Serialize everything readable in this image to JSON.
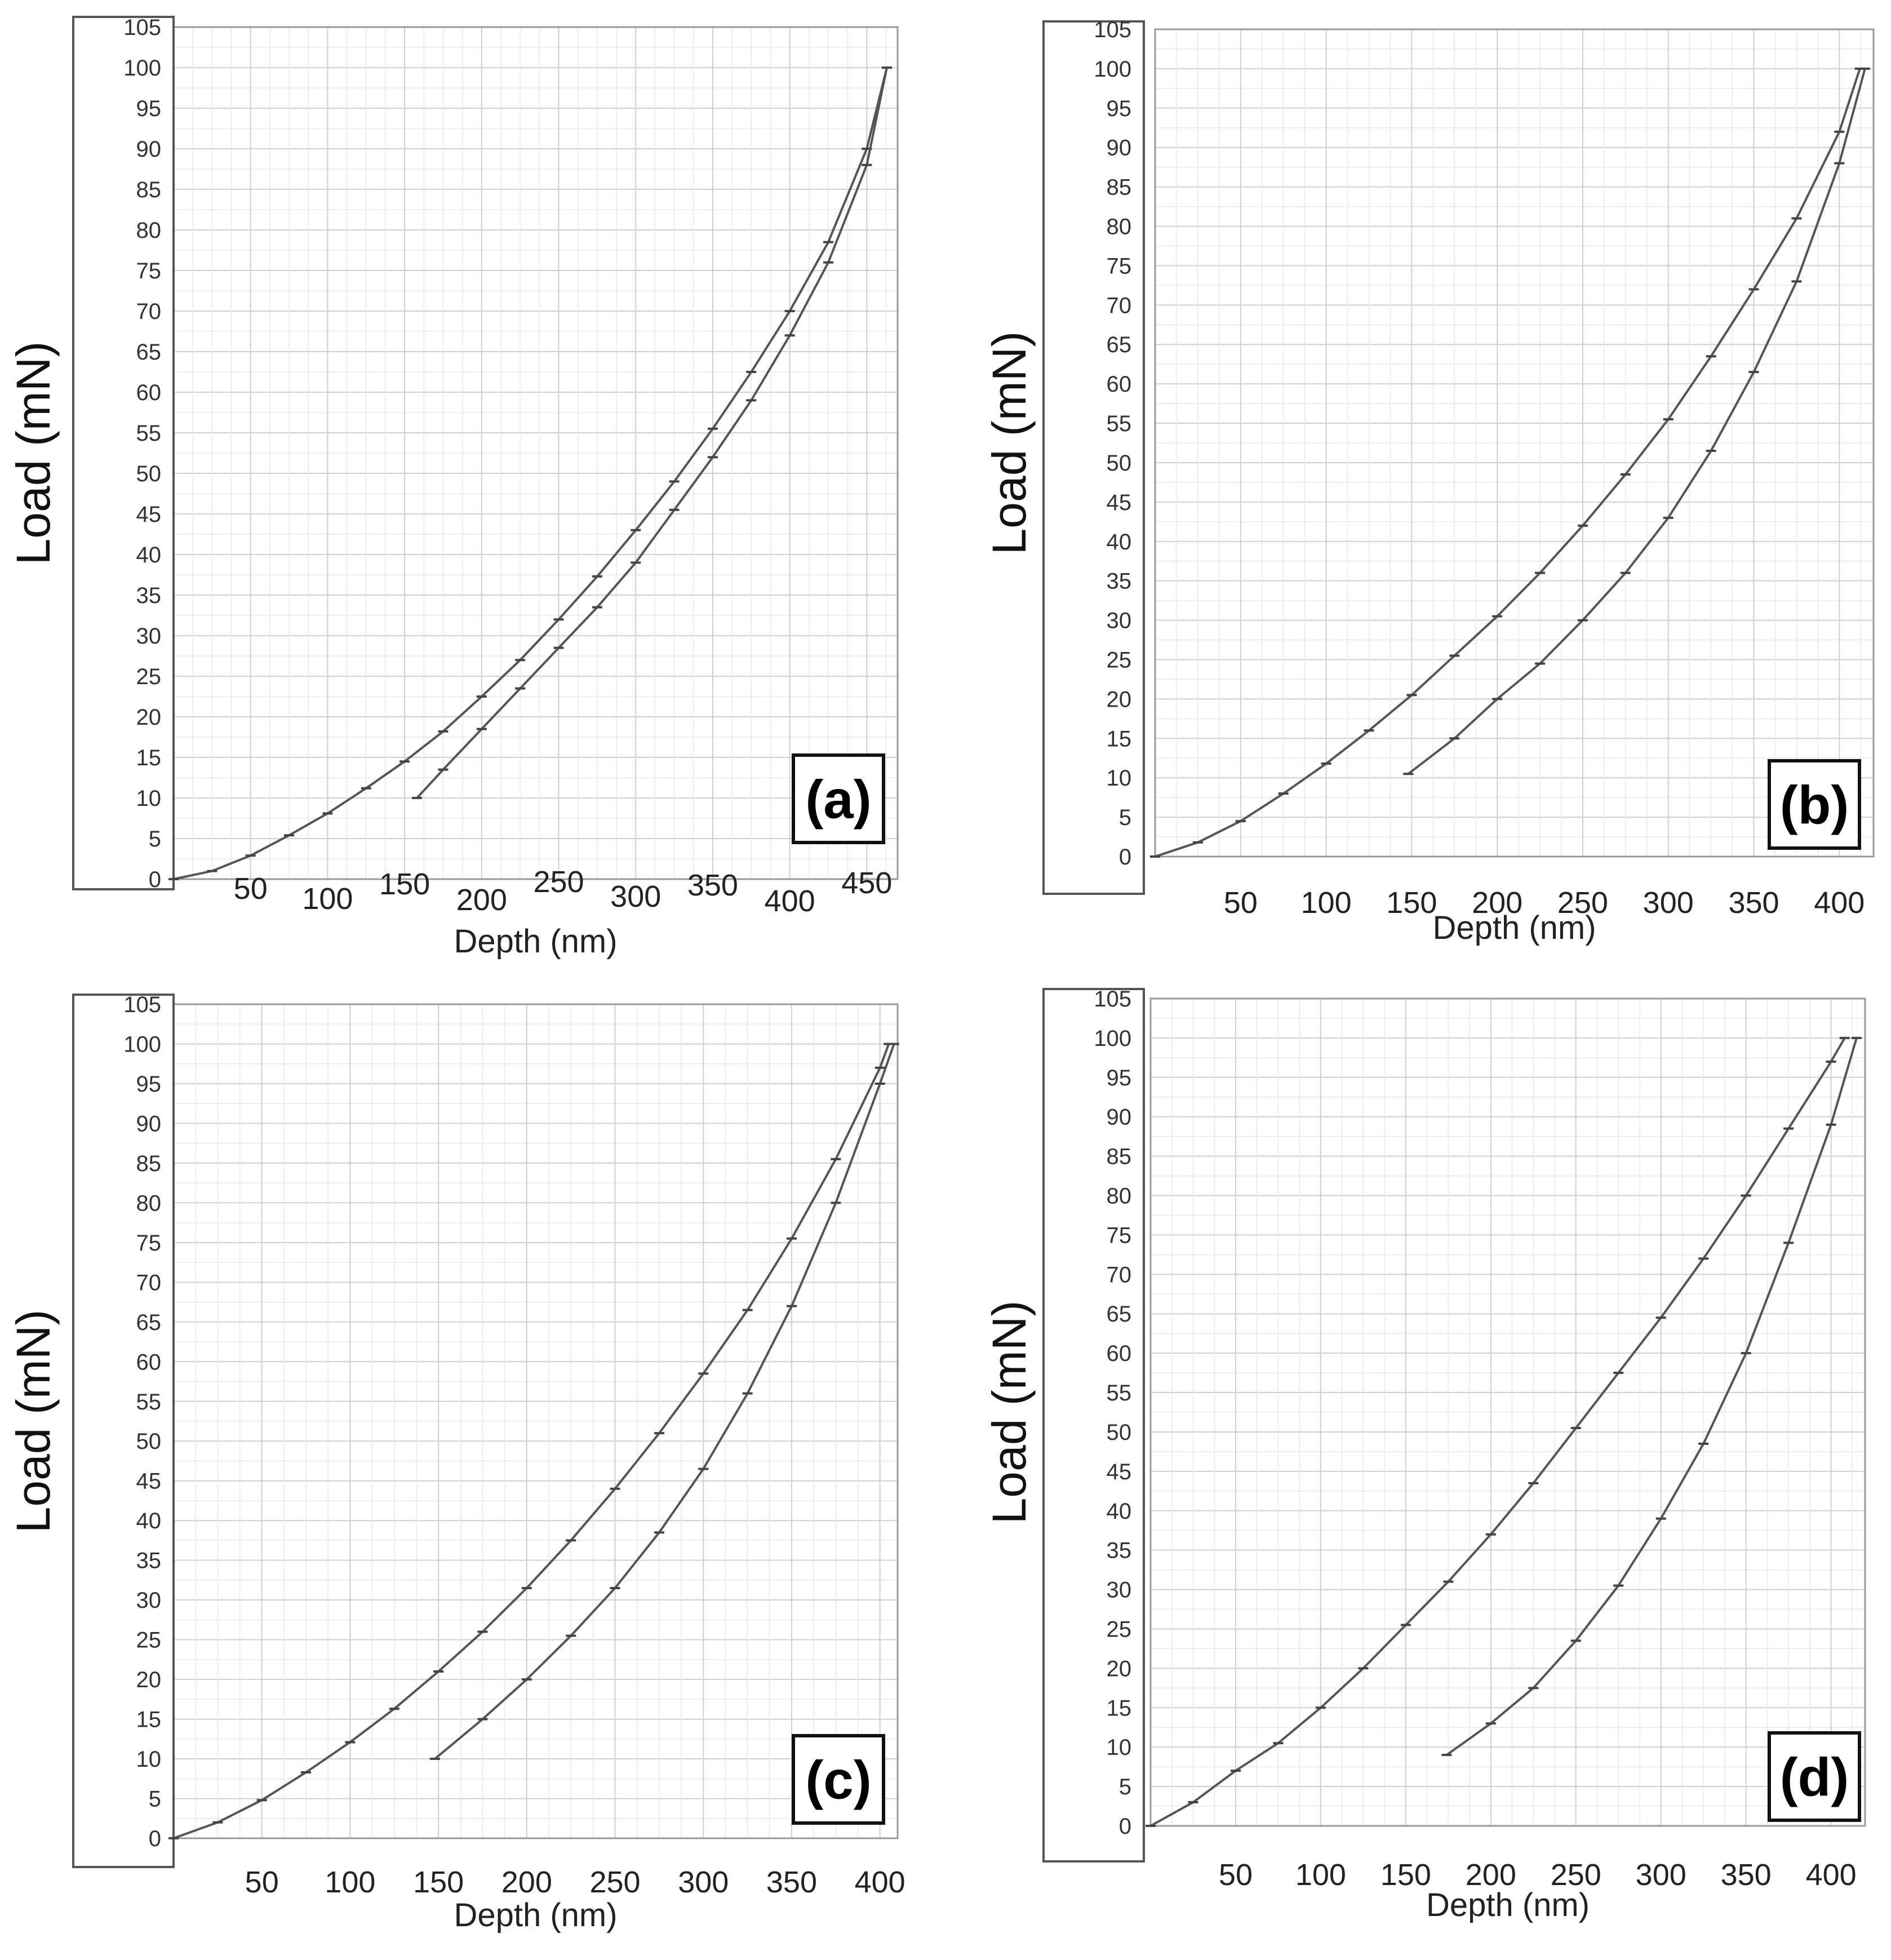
{
  "chart_data": [
    {
      "type": "line",
      "panel_label": "(a)",
      "ylabel": "Load (mN)",
      "xlabel": "Depth (nm)",
      "ylim": [
        0,
        105
      ],
      "yticks": [
        "0",
        "5",
        "10",
        "15",
        "20",
        "25",
        "30",
        "35",
        "40",
        "45",
        "50",
        "55",
        "60",
        "65",
        "70",
        "75",
        "80",
        "85",
        "90",
        "95",
        "100",
        "105"
      ],
      "xlim": [
        0,
        470
      ],
      "xticks": [
        "50",
        "100",
        "150",
        "200",
        "250",
        "300",
        "350",
        "400",
        "450"
      ],
      "grid": true,
      "series": [
        {
          "x": [
            0,
            25,
            50,
            75,
            100,
            125,
            150,
            175,
            200,
            225,
            250,
            275,
            300,
            325,
            350,
            375,
            400,
            425,
            450,
            463
          ],
          "y": [
            0,
            1.0,
            2.9,
            5.4,
            8.1,
            11.2,
            14.5,
            18.2,
            22.5,
            27.0,
            32.0,
            37.3,
            43.0,
            49.0,
            55.5,
            62.5,
            70.0,
            78.5,
            90.0,
            100
          ]
        },
        {
          "x": [
            158,
            175,
            200,
            225,
            250,
            275,
            300,
            325,
            350,
            375,
            400,
            425,
            450,
            463
          ],
          "y": [
            10,
            13.5,
            18.5,
            23.5,
            28.5,
            33.5,
            39,
            45.5,
            52,
            59,
            67,
            76,
            88,
            100
          ]
        }
      ]
    },
    {
      "type": "line",
      "panel_label": "(b)",
      "ylabel": "Load (mN)",
      "xlabel": "Depth (nm)",
      "ylim": [
        0,
        105
      ],
      "yticks": [
        "0",
        "5",
        "10",
        "15",
        "20",
        "25",
        "30",
        "35",
        "40",
        "45",
        "50",
        "55",
        "60",
        "65",
        "70",
        "75",
        "80",
        "85",
        "90",
        "95",
        "100",
        "105"
      ],
      "xlim": [
        0,
        420
      ],
      "xticks": [
        "50",
        "100",
        "150",
        "200",
        "250",
        "300",
        "350",
        "400"
      ],
      "grid": true,
      "series": [
        {
          "x": [
            0,
            25,
            50,
            75,
            100,
            125,
            150,
            175,
            200,
            225,
            250,
            275,
            300,
            325,
            350,
            375,
            400,
            412
          ],
          "y": [
            0,
            1.8,
            4.5,
            8.0,
            11.8,
            16.0,
            20.5,
            25.5,
            30.5,
            36.0,
            42.0,
            48.5,
            55.5,
            63.5,
            72.0,
            81.0,
            92.0,
            100
          ]
        },
        {
          "x": [
            148,
            175,
            200,
            225,
            250,
            275,
            300,
            325,
            350,
            375,
            400,
            415
          ],
          "y": [
            10.5,
            15,
            20,
            24.5,
            30,
            36,
            43,
            51.5,
            61.5,
            73,
            88,
            100
          ]
        }
      ]
    },
    {
      "type": "line",
      "panel_label": "(c)",
      "ylabel": "Load (mN)",
      "xlabel": "Depth (nm)",
      "ylim": [
        0,
        105
      ],
      "yticks": [
        "0",
        "5",
        "10",
        "15",
        "20",
        "25",
        "30",
        "35",
        "40",
        "45",
        "50",
        "55",
        "60",
        "65",
        "70",
        "75",
        "80",
        "85",
        "90",
        "95",
        "100",
        "105"
      ],
      "xlim": [
        0,
        410
      ],
      "xticks": [
        "50",
        "100",
        "150",
        "200",
        "250",
        "300",
        "350",
        "400"
      ],
      "grid": true,
      "series": [
        {
          "x": [
            0,
            25,
            50,
            75,
            100,
            125,
            150,
            175,
            200,
            225,
            250,
            275,
            300,
            325,
            350,
            375,
            400,
            405
          ],
          "y": [
            0,
            2,
            4.8,
            8.3,
            12.1,
            16.3,
            21,
            26,
            31.5,
            37.5,
            44,
            51,
            58.5,
            66.5,
            75.5,
            85.5,
            97,
            100
          ]
        },
        {
          "x": [
            148,
            175,
            200,
            225,
            250,
            275,
            300,
            325,
            350,
            375,
            400,
            408
          ],
          "y": [
            10,
            15,
            20,
            25.5,
            31.5,
            38.5,
            46.5,
            56,
            67,
            80,
            95,
            100
          ]
        }
      ]
    },
    {
      "type": "line",
      "panel_label": "(d)",
      "ylabel": "Load (mN)",
      "xlabel": "Depth (nm)",
      "ylim": [
        0,
        105
      ],
      "yticks": [
        "0",
        "5",
        "10",
        "15",
        "20",
        "25",
        "30",
        "35",
        "40",
        "45",
        "50",
        "55",
        "60",
        "65",
        "70",
        "75",
        "80",
        "85",
        "90",
        "95",
        "100",
        "105"
      ],
      "xlim": [
        0,
        420
      ],
      "xticks": [
        "50",
        "100",
        "150",
        "200",
        "250",
        "300",
        "350",
        "400"
      ],
      "grid": true,
      "series": [
        {
          "x": [
            0,
            25,
            50,
            75,
            100,
            125,
            150,
            175,
            200,
            225,
            250,
            275,
            300,
            325,
            350,
            375,
            400,
            408
          ],
          "y": [
            0,
            3,
            7,
            10.5,
            15,
            20,
            25.5,
            31,
            37,
            43.5,
            50.5,
            57.5,
            64.5,
            72,
            80,
            88.5,
            97,
            100
          ]
        },
        {
          "x": [
            174,
            200,
            225,
            250,
            275,
            300,
            325,
            350,
            375,
            400,
            415
          ],
          "y": [
            9,
            13,
            17.5,
            23.5,
            30.5,
            39,
            48.5,
            60,
            74,
            89,
            100
          ]
        }
      ]
    }
  ]
}
